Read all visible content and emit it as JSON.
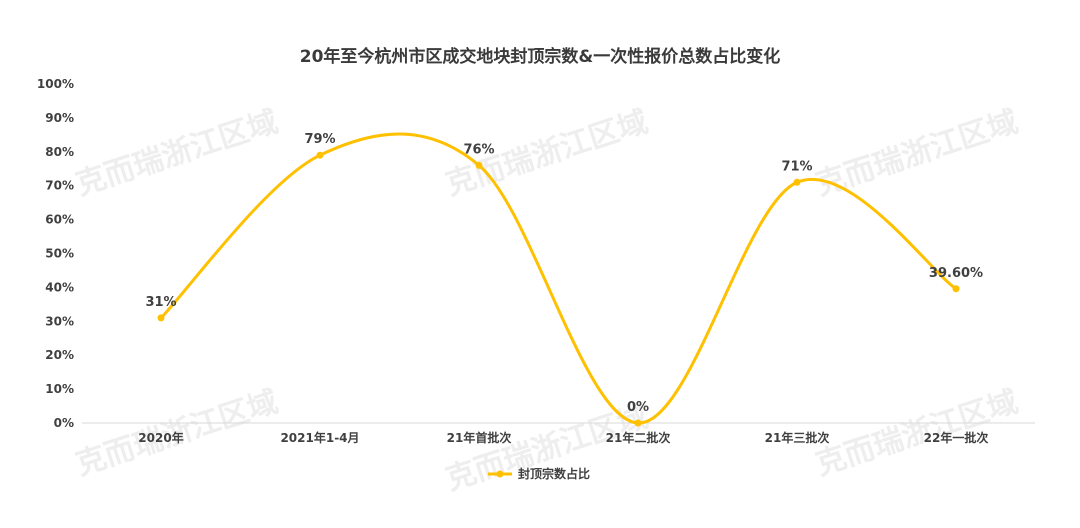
{
  "chart_data": {
    "type": "line",
    "title": "20年至今杭州市区成交地块封顶宗数&一次性报价总数占比变化",
    "categories": [
      "2020年",
      "2021年1-4月",
      "21年首批次",
      "21年二批次",
      "21年三批次",
      "22年一批次"
    ],
    "series": [
      {
        "name": "封顶宗数占比",
        "values": [
          31,
          79,
          76,
          0,
          71,
          39.6
        ],
        "labels": [
          "31%",
          "79%",
          "76%",
          "0%",
          "71%",
          "39.60%"
        ],
        "color": "#FFC000"
      }
    ],
    "yticks": [
      "0%",
      "10%",
      "20%",
      "30%",
      "40%",
      "50%",
      "60%",
      "70%",
      "80%",
      "90%",
      "100%"
    ],
    "ylim": [
      0,
      100
    ],
    "smooth": true,
    "grid": false,
    "legend_position": "bottom"
  },
  "watermark": "克而瑞浙江区域"
}
